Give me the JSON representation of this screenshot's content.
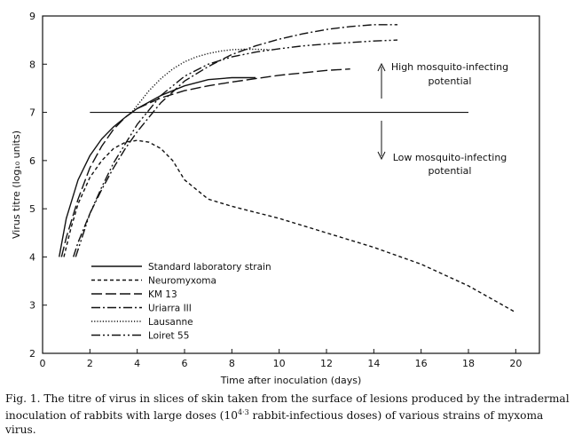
{
  "chart_data": {
    "type": "line",
    "xlabel": "Time after inoculation (days)",
    "ylabel": "Virus titre (log₁₀ units)",
    "xlim": [
      0,
      21
    ],
    "ylim": [
      2,
      9
    ],
    "xticks": [
      0,
      2,
      4,
      6,
      8,
      10,
      12,
      14,
      16,
      18,
      20
    ],
    "yticks": [
      2,
      3,
      4,
      5,
      6,
      7,
      8,
      9
    ],
    "grid": false,
    "legend_position": "bottom-left",
    "threshold": {
      "y": 7,
      "x_from": 2,
      "x_to": 18
    },
    "annotations": {
      "high": [
        "High mosquito-infecting",
        "potential"
      ],
      "low": [
        "Low mosquito-infecting",
        "potential"
      ]
    },
    "series": [
      {
        "name": "Standard laboratory strain",
        "dash": "solid",
        "x": [
          0.7,
          1.0,
          1.5,
          2.0,
          2.5,
          3.0,
          3.5,
          4.0,
          5.0,
          6.0,
          7.0,
          8.0,
          9.0
        ],
        "y": [
          4.0,
          4.8,
          5.6,
          6.1,
          6.45,
          6.7,
          6.9,
          7.08,
          7.35,
          7.55,
          7.68,
          7.72,
          7.72
        ]
      },
      {
        "name": "Neuromyxoma",
        "dash": "dashed",
        "x": [
          0.9,
          1.2,
          1.5,
          2.0,
          2.5,
          3.0,
          3.5,
          4.0,
          4.5,
          5.0,
          5.5,
          6.0,
          7.0,
          8.0,
          10.0,
          12.0,
          14.0,
          16.0,
          18.0,
          20.0
        ],
        "y": [
          4.0,
          4.6,
          5.1,
          5.65,
          6.0,
          6.25,
          6.38,
          6.42,
          6.38,
          6.25,
          6.0,
          5.6,
          5.2,
          5.05,
          4.8,
          4.5,
          4.2,
          3.85,
          3.4,
          2.85
        ]
      },
      {
        "name": "KM 13",
        "dash": "longdash",
        "x": [
          0.8,
          1.0,
          1.5,
          2.0,
          2.5,
          3.0,
          3.5,
          4.0,
          5.0,
          6.0,
          7.0,
          8.0,
          9.0,
          10.0,
          11.0,
          12.0,
          13.0
        ],
        "y": [
          4.0,
          4.4,
          5.2,
          5.85,
          6.3,
          6.65,
          6.9,
          7.08,
          7.3,
          7.45,
          7.55,
          7.63,
          7.7,
          7.77,
          7.82,
          7.87,
          7.9
        ]
      },
      {
        "name": "Uriarra III",
        "dash": "dashdot",
        "x": [
          1.3,
          1.5,
          2.0,
          2.5,
          3.0,
          3.5,
          4.0,
          5.0,
          6.0,
          7.0,
          8.0,
          9.0,
          10.0,
          11.0,
          12.0,
          13.0,
          14.0,
          15.0
        ],
        "y": [
          4.0,
          4.3,
          4.9,
          5.4,
          5.85,
          6.25,
          6.6,
          7.2,
          7.65,
          7.95,
          8.2,
          8.38,
          8.52,
          8.63,
          8.72,
          8.78,
          8.82,
          8.82
        ]
      },
      {
        "name": "Lausanne",
        "dash": "dotted",
        "x": [
          3.8,
          4.5,
          5.0,
          5.5,
          6.0,
          6.5,
          7.0,
          7.5,
          8.0,
          8.5,
          9.0,
          9.6
        ],
        "y": [
          7.02,
          7.45,
          7.7,
          7.9,
          8.05,
          8.15,
          8.22,
          8.27,
          8.3,
          8.31,
          8.31,
          8.3
        ]
      },
      {
        "name": "Loiret 55",
        "dash": "dashdotdot",
        "x": [
          1.4,
          1.7,
          2.0,
          2.5,
          3.0,
          3.5,
          4.0,
          5.0,
          6.0,
          7.0,
          8.0,
          9.0,
          10.0,
          11.0,
          12.0,
          13.0,
          14.0,
          15.0
        ],
        "y": [
          4.0,
          4.45,
          4.9,
          5.45,
          5.95,
          6.35,
          6.75,
          7.35,
          7.75,
          8.0,
          8.15,
          8.25,
          8.32,
          8.38,
          8.42,
          8.45,
          8.48,
          8.5
        ]
      }
    ]
  },
  "caption": {
    "label": "Fig. 1.",
    "text_before": " The titre of virus in slices of skin taken from the surface of lesions produced by the intradermal inoculation of rabbits with large doses (10",
    "superscript": "4·3",
    "text_after": " rabbit-infectious doses) of various strains of myxoma virus."
  }
}
